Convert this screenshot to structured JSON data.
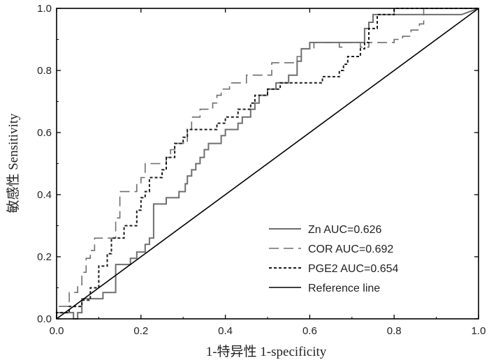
{
  "chart_data": {
    "type": "line",
    "xlabel": "1-特异性 1-specificity",
    "ylabel": "敏感性 Sensitivity",
    "xlim": [
      0,
      1
    ],
    "ylim": [
      0,
      1
    ],
    "xticks": [
      "0.0",
      "0.2",
      "0.4",
      "0.6",
      "0.8",
      "1.0"
    ],
    "yticks": [
      "0.0",
      "0.2",
      "0.4",
      "0.6",
      "0.8",
      "1.0"
    ],
    "grid": false,
    "legend_position": "bottom-right",
    "series": [
      {
        "name": "Zn AUC=0.626",
        "color": "#6e6e6e",
        "dash": "solid",
        "points": [
          [
            0,
            0
          ],
          [
            0,
            0.02
          ],
          [
            0.04,
            0.02
          ],
          [
            0.04,
            0
          ],
          [
            0.05,
            0
          ],
          [
            0.05,
            0.02
          ],
          [
            0.06,
            0.02
          ],
          [
            0.06,
            0.065
          ],
          [
            0.09,
            0.065
          ],
          [
            0.09,
            0.065
          ],
          [
            0.11,
            0.065
          ],
          [
            0.11,
            0.085
          ],
          [
            0.13,
            0.085
          ],
          [
            0.13,
            0.085
          ],
          [
            0.14,
            0.085
          ],
          [
            0.14,
            0.175
          ],
          [
            0.17,
            0.175
          ],
          [
            0.17,
            0.175
          ],
          [
            0.175,
            0.175
          ],
          [
            0.175,
            0.195
          ],
          [
            0.19,
            0.195
          ],
          [
            0.19,
            0.215
          ],
          [
            0.2,
            0.215
          ],
          [
            0.2,
            0.215
          ],
          [
            0.21,
            0.215
          ],
          [
            0.21,
            0.24
          ],
          [
            0.22,
            0.24
          ],
          [
            0.22,
            0.26
          ],
          [
            0.23,
            0.26
          ],
          [
            0.23,
            0.37
          ],
          [
            0.25,
            0.37
          ],
          [
            0.25,
            0.37
          ],
          [
            0.26,
            0.37
          ],
          [
            0.26,
            0.39
          ],
          [
            0.28,
            0.39
          ],
          [
            0.28,
            0.39
          ],
          [
            0.29,
            0.39
          ],
          [
            0.29,
            0.41
          ],
          [
            0.305,
            0.41
          ],
          [
            0.305,
            0.435
          ],
          [
            0.31,
            0.435
          ],
          [
            0.31,
            0.46
          ],
          [
            0.32,
            0.46
          ],
          [
            0.32,
            0.48
          ],
          [
            0.33,
            0.48
          ],
          [
            0.33,
            0.5
          ],
          [
            0.34,
            0.5
          ],
          [
            0.34,
            0.52
          ],
          [
            0.35,
            0.52
          ],
          [
            0.35,
            0.545
          ],
          [
            0.36,
            0.545
          ],
          [
            0.36,
            0.565
          ],
          [
            0.38,
            0.565
          ],
          [
            0.38,
            0.565
          ],
          [
            0.39,
            0.565
          ],
          [
            0.39,
            0.59
          ],
          [
            0.4,
            0.59
          ],
          [
            0.4,
            0.61
          ],
          [
            0.42,
            0.61
          ],
          [
            0.42,
            0.61
          ],
          [
            0.43,
            0.61
          ],
          [
            0.43,
            0.63
          ],
          [
            0.44,
            0.63
          ],
          [
            0.44,
            0.65
          ],
          [
            0.46,
            0.65
          ],
          [
            0.46,
            0.675
          ],
          [
            0.47,
            0.675
          ],
          [
            0.47,
            0.695
          ],
          [
            0.48,
            0.695
          ],
          [
            0.48,
            0.72
          ],
          [
            0.5,
            0.72
          ],
          [
            0.5,
            0.74
          ],
          [
            0.52,
            0.74
          ],
          [
            0.52,
            0.76
          ],
          [
            0.54,
            0.76
          ],
          [
            0.54,
            0.76
          ],
          [
            0.55,
            0.76
          ],
          [
            0.55,
            0.785
          ],
          [
            0.57,
            0.785
          ],
          [
            0.57,
            0.83
          ],
          [
            0.58,
            0.83
          ],
          [
            0.58,
            0.87
          ],
          [
            0.6,
            0.87
          ],
          [
            0.6,
            0.89
          ],
          [
            0.7,
            0.89
          ],
          [
            0.7,
            0.89
          ],
          [
            0.73,
            0.89
          ],
          [
            0.73,
            0.935
          ],
          [
            0.74,
            0.935
          ],
          [
            0.74,
            0.955
          ],
          [
            0.75,
            0.955
          ],
          [
            0.75,
            0.98
          ],
          [
            0.96,
            0.98
          ],
          [
            0.96,
            0.98
          ],
          [
            1,
            1
          ]
        ]
      },
      {
        "name": "COR AUC=0.692",
        "color": "#6e6e6e",
        "dash": "long",
        "points": [
          [
            0,
            0
          ],
          [
            0,
            0.04
          ],
          [
            0.03,
            0.04
          ],
          [
            0.03,
            0.085
          ],
          [
            0.05,
            0.085
          ],
          [
            0.05,
            0.11
          ],
          [
            0.06,
            0.11
          ],
          [
            0.06,
            0.15
          ],
          [
            0.07,
            0.15
          ],
          [
            0.07,
            0.195
          ],
          [
            0.08,
            0.195
          ],
          [
            0.08,
            0.22
          ],
          [
            0.09,
            0.22
          ],
          [
            0.09,
            0.26
          ],
          [
            0.13,
            0.26
          ],
          [
            0.13,
            0.26
          ],
          [
            0.14,
            0.26
          ],
          [
            0.14,
            0.325
          ],
          [
            0.15,
            0.325
          ],
          [
            0.15,
            0.41
          ],
          [
            0.18,
            0.41
          ],
          [
            0.18,
            0.41
          ],
          [
            0.19,
            0.41
          ],
          [
            0.19,
            0.435
          ],
          [
            0.2,
            0.435
          ],
          [
            0.2,
            0.455
          ],
          [
            0.21,
            0.455
          ],
          [
            0.21,
            0.5
          ],
          [
            0.25,
            0.5
          ],
          [
            0.25,
            0.5
          ],
          [
            0.26,
            0.5
          ],
          [
            0.26,
            0.52
          ],
          [
            0.27,
            0.52
          ],
          [
            0.27,
            0.545
          ],
          [
            0.28,
            0.545
          ],
          [
            0.28,
            0.565
          ],
          [
            0.31,
            0.565
          ],
          [
            0.31,
            0.61
          ],
          [
            0.32,
            0.61
          ],
          [
            0.32,
            0.65
          ],
          [
            0.34,
            0.65
          ],
          [
            0.34,
            0.675
          ],
          [
            0.37,
            0.675
          ],
          [
            0.37,
            0.695
          ],
          [
            0.38,
            0.695
          ],
          [
            0.38,
            0.72
          ],
          [
            0.39,
            0.72
          ],
          [
            0.39,
            0.74
          ],
          [
            0.41,
            0.74
          ],
          [
            0.41,
            0.76
          ],
          [
            0.45,
            0.76
          ],
          [
            0.45,
            0.785
          ],
          [
            0.51,
            0.785
          ],
          [
            0.51,
            0.825
          ],
          [
            0.57,
            0.825
          ],
          [
            0.57,
            0.845
          ],
          [
            0.58,
            0.845
          ],
          [
            0.58,
            0.87
          ],
          [
            0.6,
            0.87
          ],
          [
            0.6,
            0.87
          ],
          [
            0.61,
            0.87
          ],
          [
            0.61,
            0.89
          ],
          [
            0.65,
            0.89
          ],
          [
            0.65,
            0.89
          ],
          [
            0.67,
            0.89
          ],
          [
            0.67,
            0.875
          ],
          [
            0.68,
            0.875
          ],
          [
            0.68,
            0.89
          ],
          [
            0.72,
            0.89
          ],
          [
            0.72,
            0.875
          ],
          [
            0.74,
            0.875
          ],
          [
            0.74,
            0.89
          ],
          [
            0.8,
            0.89
          ],
          [
            0.8,
            0.9
          ],
          [
            0.82,
            0.9
          ],
          [
            0.82,
            0.91
          ],
          [
            0.84,
            0.91
          ],
          [
            0.84,
            0.93
          ],
          [
            0.86,
            0.93
          ],
          [
            0.86,
            0.95
          ],
          [
            0.87,
            0.95
          ],
          [
            0.87,
            1
          ],
          [
            1,
            1
          ]
        ]
      },
      {
        "name": "PGE2 AUC=0.654",
        "color": "#1a1a1a",
        "dash": "short",
        "points": [
          [
            0,
            0
          ],
          [
            0,
            0.02
          ],
          [
            0.03,
            0.02
          ],
          [
            0.03,
            0.04
          ],
          [
            0.06,
            0.04
          ],
          [
            0.06,
            0.06
          ],
          [
            0.08,
            0.06
          ],
          [
            0.08,
            0.1
          ],
          [
            0.1,
            0.1
          ],
          [
            0.1,
            0.17
          ],
          [
            0.12,
            0.17
          ],
          [
            0.12,
            0.21
          ],
          [
            0.13,
            0.21
          ],
          [
            0.13,
            0.26
          ],
          [
            0.16,
            0.26
          ],
          [
            0.16,
            0.3
          ],
          [
            0.19,
            0.3
          ],
          [
            0.19,
            0.35
          ],
          [
            0.2,
            0.35
          ],
          [
            0.2,
            0.39
          ],
          [
            0.21,
            0.39
          ],
          [
            0.21,
            0.41
          ],
          [
            0.22,
            0.41
          ],
          [
            0.22,
            0.455
          ],
          [
            0.25,
            0.455
          ],
          [
            0.25,
            0.48
          ],
          [
            0.26,
            0.48
          ],
          [
            0.26,
            0.52
          ],
          [
            0.28,
            0.52
          ],
          [
            0.28,
            0.565
          ],
          [
            0.3,
            0.565
          ],
          [
            0.3,
            0.585
          ],
          [
            0.31,
            0.585
          ],
          [
            0.31,
            0.61
          ],
          [
            0.37,
            0.61
          ],
          [
            0.37,
            0.61
          ],
          [
            0.38,
            0.61
          ],
          [
            0.38,
            0.63
          ],
          [
            0.4,
            0.63
          ],
          [
            0.4,
            0.65
          ],
          [
            0.43,
            0.65
          ],
          [
            0.43,
            0.675
          ],
          [
            0.46,
            0.675
          ],
          [
            0.46,
            0.695
          ],
          [
            0.47,
            0.695
          ],
          [
            0.47,
            0.72
          ],
          [
            0.5,
            0.72
          ],
          [
            0.5,
            0.74
          ],
          [
            0.53,
            0.74
          ],
          [
            0.53,
            0.76
          ],
          [
            0.56,
            0.76
          ],
          [
            0.56,
            0.76
          ],
          [
            0.63,
            0.76
          ],
          [
            0.63,
            0.78
          ],
          [
            0.67,
            0.78
          ],
          [
            0.67,
            0.8
          ],
          [
            0.68,
            0.8
          ],
          [
            0.68,
            0.82
          ],
          [
            0.69,
            0.82
          ],
          [
            0.69,
            0.845
          ],
          [
            0.72,
            0.845
          ],
          [
            0.72,
            0.87
          ],
          [
            0.73,
            0.87
          ],
          [
            0.73,
            0.89
          ],
          [
            0.74,
            0.89
          ],
          [
            0.74,
            0.935
          ],
          [
            0.76,
            0.935
          ],
          [
            0.76,
            0.98
          ],
          [
            0.8,
            0.98
          ],
          [
            0.8,
            1
          ],
          [
            1,
            1
          ]
        ]
      },
      {
        "name": "Reference line",
        "color": "#000000",
        "dash": "solid",
        "points": [
          [
            0,
            0
          ],
          [
            1,
            1
          ]
        ]
      }
    ]
  }
}
